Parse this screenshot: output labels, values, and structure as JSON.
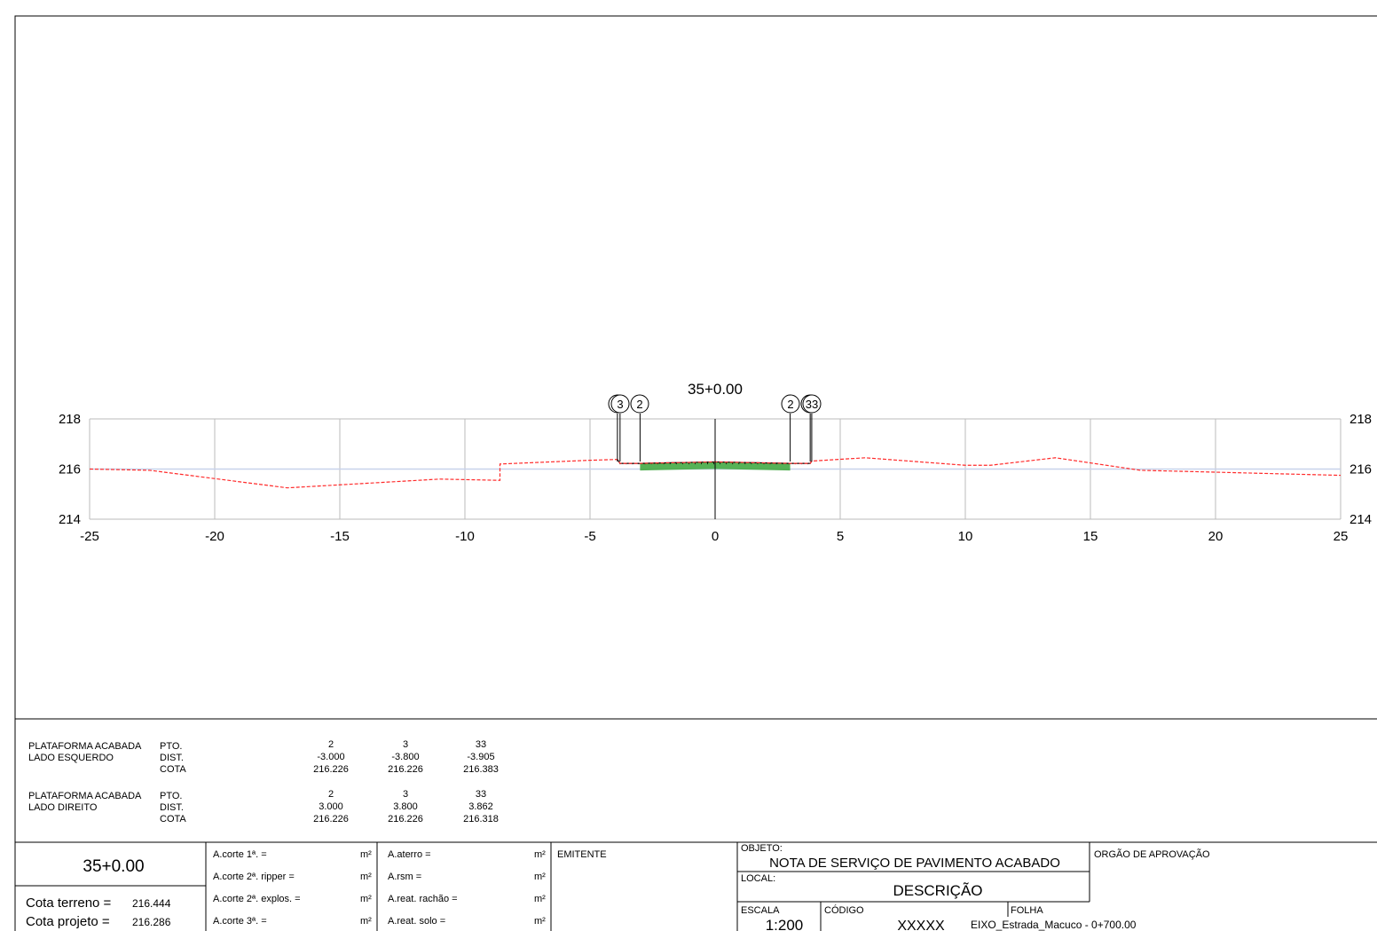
{
  "section": {
    "station": "35+0.00",
    "x_ticks": [
      "-25",
      "-20",
      "-15",
      "-10",
      "-5",
      "0",
      "5",
      "10",
      "15",
      "20",
      "25"
    ],
    "y_ticks": [
      "218",
      "216",
      "214"
    ],
    "markers_left": [
      "33",
      "3",
      "2"
    ],
    "markers_right": [
      "2",
      "3",
      "33"
    ]
  },
  "chart_data": {
    "type": "line",
    "xlim": [
      -25,
      25
    ],
    "ylim": [
      214,
      218
    ],
    "grid": true,
    "series": [
      {
        "x": [
          -25,
          -22.6,
          -17.1,
          -11,
          -8.6,
          -8.6,
          -5,
          -3.905,
          -3.8,
          -3,
          0,
          3,
          3.8,
          3.862,
          6,
          10,
          11,
          13.6,
          17,
          25
        ],
        "y": [
          216.0,
          215.95,
          215.25,
          215.6,
          215.55,
          216.2,
          216.35,
          216.383,
          216.226,
          216.226,
          216.286,
          216.226,
          216.226,
          216.318,
          216.45,
          216.15,
          216.15,
          216.45,
          215.95,
          215.75
        ]
      },
      {
        "x": [
          -3.905,
          -3.8,
          -3,
          0,
          3,
          3.8,
          3.862
        ],
        "y": [
          216.383,
          216.226,
          216.226,
          216.286,
          216.226,
          216.226,
          216.318
        ]
      }
    ],
    "colors": {
      "terrain": "#ff2a2a",
      "platform": "#44aa44",
      "grid": "#bbbbbb",
      "datum": "#c8d2ea"
    }
  },
  "data_block": {
    "rows": [
      {
        "title1": "PLATAFORMA ACABADA",
        "title2": "LADO ESQUERDO",
        "labels": [
          "PTO.",
          "DIST.",
          "COTA"
        ],
        "columns": [
          [
            "2",
            "-3.000",
            "216.226"
          ],
          [
            "3",
            "-3.800",
            "216.226"
          ],
          [
            "33",
            "-3.905",
            "216.383"
          ]
        ]
      },
      {
        "title1": "PLATAFORMA ACABADA",
        "title2": "LADO DIREITO",
        "labels": [
          "PTO.",
          "DIST.",
          "COTA"
        ],
        "columns": [
          [
            "2",
            "3.000",
            "216.226"
          ],
          [
            "3",
            "3.800",
            "216.226"
          ],
          [
            "33",
            "3.862",
            "216.318"
          ]
        ]
      }
    ]
  },
  "titleblock": {
    "station": "35+0.00",
    "cota_terreno_label": "Cota terreno =",
    "cota_terreno_value": "216.444",
    "cota_projeto_label": "Cota projeto =",
    "cota_projeto_value": "216.286",
    "areas_a": [
      "A.corte 1ª. =",
      "A.corte 2ª. ripper =",
      "A.corte 2ª. explos. =",
      "A.corte 3ª. ="
    ],
    "areas_b": [
      "A.aterro =",
      "A.rsm =",
      "A.reat. rachão =",
      "A.reat. solo ="
    ],
    "unit": "m²",
    "emitente": "EMITENTE",
    "objeto_label": "OBJETO:",
    "objeto": "NOTA DE SERVIÇO DE PAVIMENTO ACABADO",
    "local_label": "LOCAL:",
    "local": "DESCRIÇÃO",
    "escala_label": "ESCALA",
    "escala": "1:200",
    "codigo_label": "CÓDIGO",
    "codigo": "XXXXX",
    "folha_label": "FOLHA",
    "folha": "EIXO_Estrada_Macuco - 0+700.00",
    "orgao": "ORGÃO DE APROVAÇÃO"
  }
}
